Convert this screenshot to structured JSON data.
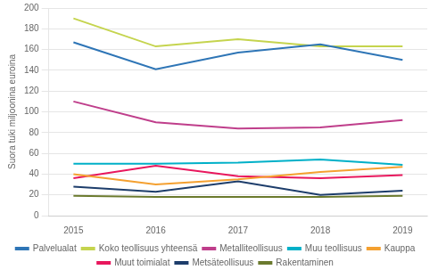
{
  "chart_data": {
    "type": "line",
    "x": [
      2015,
      2016,
      2017,
      2018,
      2019
    ],
    "xlim": [
      2014.7,
      2019.3
    ],
    "xticks": [
      2015,
      2016,
      2017,
      2018,
      2019
    ],
    "ylabel": "Suora tuki miljoonina euroina",
    "ylim": [
      0,
      200
    ],
    "yticks": [
      0,
      20,
      40,
      60,
      80,
      100,
      120,
      140,
      160,
      180,
      200
    ],
    "grid": "y",
    "legend": "bottom",
    "series": [
      {
        "name": "Palvelualat",
        "color": "#2e75b6",
        "values": [
          167,
          141,
          157,
          165,
          150
        ]
      },
      {
        "name": "Koko teollisuus yhteensä",
        "color": "#c5d44e",
        "values": [
          190,
          163,
          170,
          163,
          163
        ]
      },
      {
        "name": "Metalliteollisuus",
        "color": "#bf3e8b",
        "values": [
          110,
          90,
          84,
          85,
          92
        ]
      },
      {
        "name": "Muu teollisuus",
        "color": "#00b0c8",
        "values": [
          50,
          50,
          51,
          54,
          49
        ]
      },
      {
        "name": "Kauppa",
        "color": "#f4a030",
        "values": [
          40,
          30,
          35,
          42,
          47
        ]
      },
      {
        "name": "Muut toimialat",
        "color": "#e8175d",
        "values": [
          36,
          48,
          38,
          36,
          39
        ]
      },
      {
        "name": "Metsäteollisuus",
        "color": "#1d3d6b",
        "values": [
          28,
          23,
          33,
          20,
          24
        ]
      },
      {
        "name": "Rakentaminen",
        "color": "#6b7a2e",
        "values": [
          19,
          18,
          18,
          18,
          19
        ]
      }
    ]
  }
}
